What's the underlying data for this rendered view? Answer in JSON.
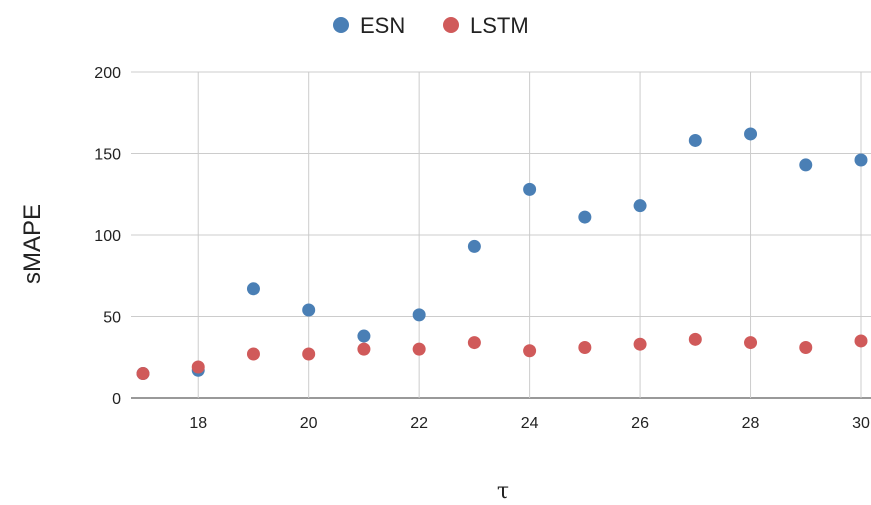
{
  "chart_data": {
    "type": "scatter",
    "xlabel": "τ",
    "ylabel": "sMAPE",
    "xlim": [
      17,
      30
    ],
    "ylim": [
      0,
      200
    ],
    "x_ticks": [
      18,
      20,
      22,
      24,
      26,
      28,
      30
    ],
    "y_ticks": [
      0,
      50,
      100,
      150,
      200
    ],
    "grid": true,
    "legend_position": "top-center",
    "series": [
      {
        "name": "ESN",
        "color": "#4a7fb5",
        "x": [
          17,
          18,
          19,
          20,
          21,
          22,
          23,
          24,
          25,
          26,
          27,
          28,
          29,
          30
        ],
        "y": [
          15,
          17,
          67,
          54,
          38,
          51,
          93,
          128,
          111,
          118,
          158,
          162,
          143,
          146
        ]
      },
      {
        "name": "LSTM",
        "color": "#d05a5a",
        "x": [
          17,
          18,
          19,
          20,
          21,
          22,
          23,
          24,
          25,
          26,
          27,
          28,
          29,
          30
        ],
        "y": [
          15,
          19,
          27,
          27,
          30,
          30,
          34,
          29,
          31,
          33,
          36,
          34,
          31,
          35
        ]
      }
    ]
  }
}
